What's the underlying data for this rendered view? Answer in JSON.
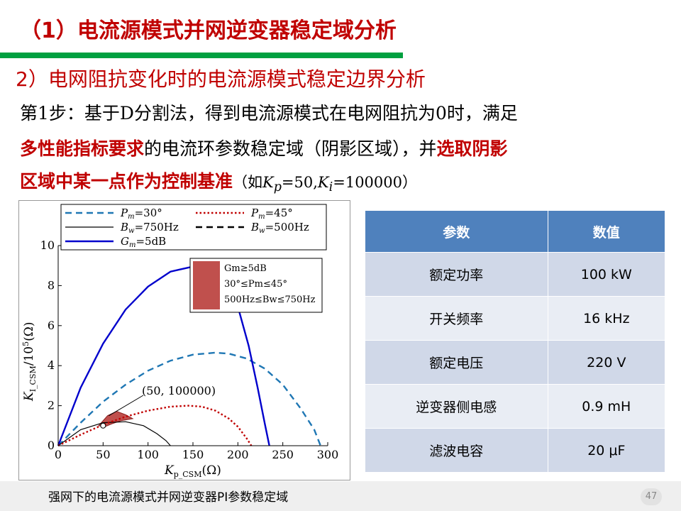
{
  "slide": {
    "title": "（1）电流源模式并网逆变器稳定域分析",
    "subtitle": "2）电网阻抗变化时的电流源模式稳定边界分析",
    "body": {
      "line1": "第1步：基于D分割法，得到电流源模式在电网阻抗为0时，满足",
      "line2_red": "多性能指标要求",
      "line2_rest": "的电流环参数稳定域（阴影区域），并",
      "line2_red2": "选取阴影",
      "line3_red": "区域中某一点作为控制基准",
      "line3_paren_open": "（如",
      "line3_kp": "K",
      "line3_kp_sub": "p",
      "line3_mid": "=50,",
      "line3_ki": "K",
      "line3_ki_sub": "i",
      "line3_end": "=100000）"
    },
    "footer_text": "强网下的电流源模式并网逆变器PI参数稳定域",
    "page_number": "47"
  },
  "table": {
    "headers": [
      "参数",
      "数值"
    ],
    "rows": [
      [
        "额定功率",
        "100 kW"
      ],
      [
        "开关频率",
        "16 kHz"
      ],
      [
        "额定电压",
        "220 V"
      ],
      [
        "逆变器侧电感",
        "0.9 mH"
      ],
      [
        "滤波电容",
        "20 μF"
      ]
    ]
  },
  "chart_data": {
    "type": "line",
    "xlabel": "Kp_CSM(Ω)",
    "ylabel": "KI_CSM/10^5(Ω)",
    "xlim": [
      0,
      300
    ],
    "ylim": [
      0,
      10
    ],
    "xticks": [
      0,
      50,
      100,
      150,
      200,
      250,
      300
    ],
    "yticks": [
      0,
      2,
      4,
      6,
      8,
      10
    ],
    "series": [
      {
        "name": "Pm=30°",
        "style": "dashed",
        "color": "#1f77b4",
        "x": [
          0,
          25,
          50,
          75,
          100,
          125,
          150,
          175,
          190,
          210,
          230,
          250,
          270,
          285,
          292
        ],
        "y": [
          0,
          1.15,
          2.2,
          3.05,
          3.75,
          4.25,
          4.55,
          4.65,
          4.6,
          4.35,
          3.85,
          3.05,
          1.85,
          0.8,
          0
        ]
      },
      {
        "name": "Bw=750Hz",
        "style": "solid-thin",
        "color": "#000000",
        "x": [
          0,
          25,
          50,
          75,
          95,
          110,
          120,
          125
        ],
        "y": [
          0,
          0.8,
          1.15,
          1.2,
          1.0,
          0.6,
          0.25,
          0
        ]
      },
      {
        "name": "Gm=5dB",
        "style": "solid",
        "color": "#0000cc",
        "x": [
          0,
          25,
          50,
          75,
          100,
          125,
          150,
          175,
          190,
          200,
          212,
          222,
          230,
          235
        ],
        "y": [
          0,
          2.9,
          5.1,
          6.8,
          7.95,
          8.7,
          8.95,
          8.7,
          8.05,
          6.95,
          5.0,
          2.9,
          1.1,
          0
        ]
      },
      {
        "name": "Pm=45°",
        "style": "dotted",
        "color": "#c00000",
        "x": [
          0,
          25,
          50,
          75,
          100,
          125,
          145,
          160,
          175,
          190,
          200,
          210,
          215
        ],
        "y": [
          0,
          0.55,
          1.05,
          1.45,
          1.75,
          1.95,
          2.0,
          1.95,
          1.75,
          1.35,
          0.95,
          0.35,
          0
        ]
      },
      {
        "name": "Bw=500Hz",
        "style": "dashed",
        "color": "#000000",
        "x": [],
        "y": []
      }
    ],
    "stable_region": {
      "label_lines": [
        "Gm≥5dB",
        "30°≤Pm≤45°",
        "500Hz≤Bw≤750Hz"
      ],
      "color": "#c0504d",
      "x": [
        45,
        55,
        65,
        75,
        83,
        70,
        60,
        52,
        45
      ],
      "y": [
        1.0,
        1.5,
        1.72,
        1.55,
        1.35,
        1.25,
        1.1,
        0.95,
        1.0
      ]
    },
    "annotation": {
      "text": "(50, 100000)",
      "point": [
        50,
        1.0
      ]
    },
    "legend": [
      {
        "base": "P",
        "sub": "m",
        "rest": "=30°",
        "style": "dashed",
        "color": "#1f77b4"
      },
      {
        "base": "P",
        "sub": "m",
        "rest": "=45°",
        "style": "dotted",
        "color": "#c00000"
      },
      {
        "base": "B",
        "sub": "w",
        "rest": "=750Hz",
        "style": "solid-thin",
        "color": "#000000"
      },
      {
        "base": "B",
        "sub": "w",
        "rest": "=500Hz",
        "style": "dashed",
        "color": "#000000"
      },
      {
        "base": "G",
        "sub": "m",
        "rest": "=5dB",
        "style": "solid",
        "color": "#0000cc"
      }
    ]
  },
  "colors": {
    "title_red": "#c00000",
    "accent_green": "#00a040",
    "table_header": "#4f81bd",
    "table_row_a": "#d0d8e8",
    "table_row_b": "#e9edf4"
  }
}
